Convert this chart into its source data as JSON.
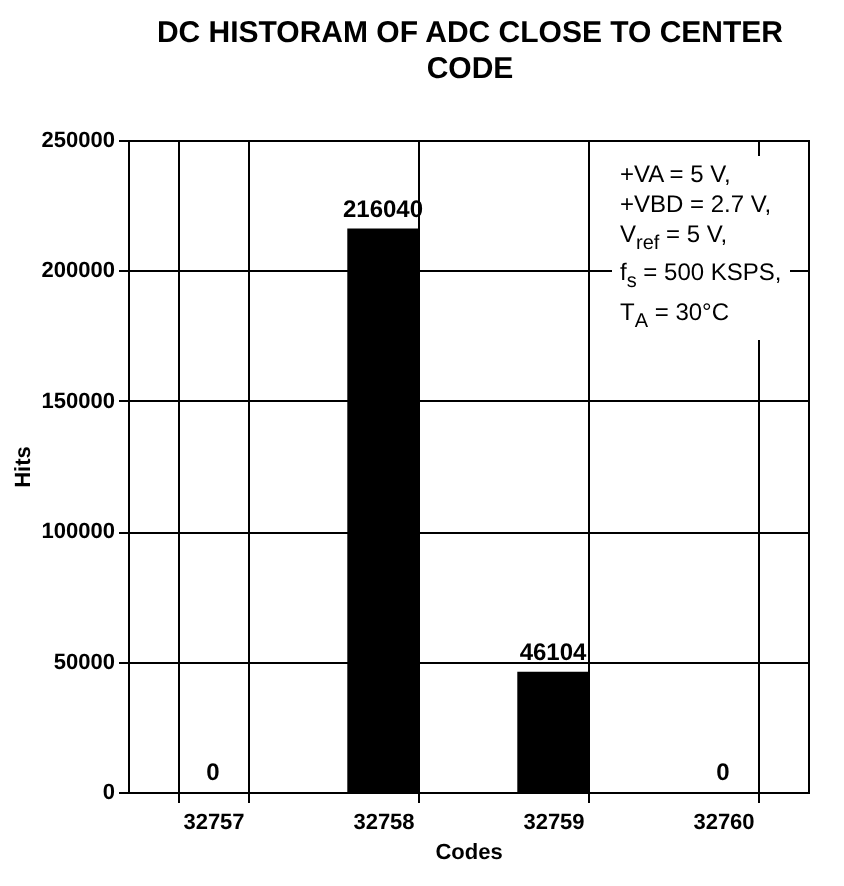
{
  "chart_data": {
    "type": "bar",
    "title": "DC HISTORAM OF ADC CLOSE TO CENTER CODE",
    "xlabel": "Codes",
    "ylabel": "Hits",
    "categories": [
      "32757",
      "32758",
      "32759",
      "32760"
    ],
    "values": [
      0,
      216040,
      46104,
      0
    ],
    "color": "#000000",
    "ylim": [
      0,
      250000
    ],
    "yticks": [
      0,
      50000,
      100000,
      150000,
      200000,
      250000
    ],
    "grid": true,
    "data_labels": true,
    "annotations": [
      "+VA = 5 V,",
      "+VBD = 2.7 V,",
      "V$_{ref}$ = 5 V,",
      "f$_{s}$ = 500 KSPS,",
      "T$_{A}$ = 30°C"
    ]
  }
}
